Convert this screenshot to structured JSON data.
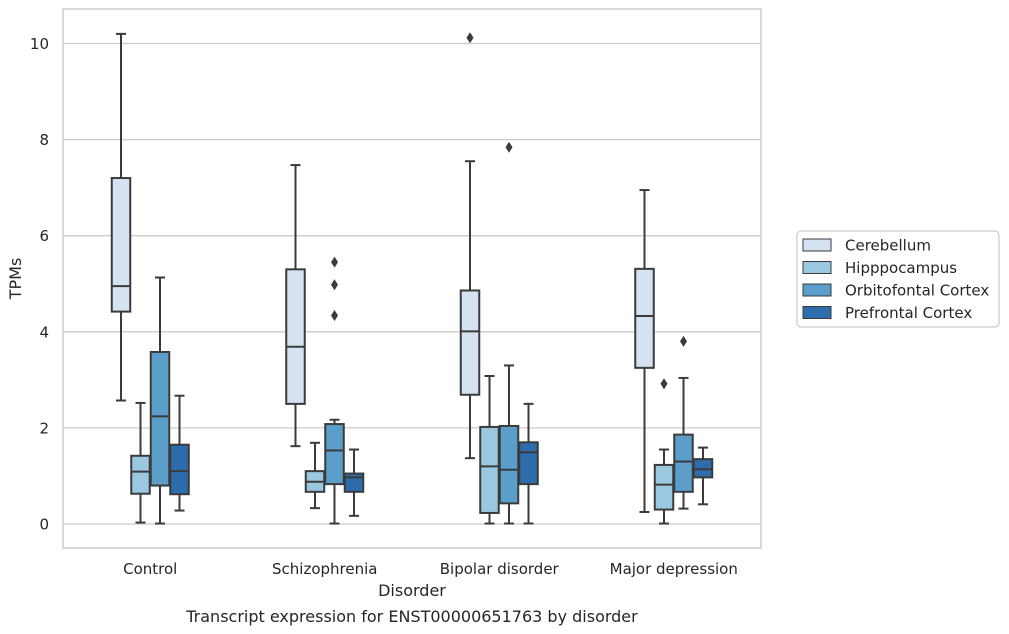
{
  "chart_data": {
    "type": "box",
    "title": "",
    "caption": "Transcript expression for ENST00000651763 by disorder",
    "xlabel": "Disorder",
    "ylabel": "TPMs",
    "ylim": [
      -0.5,
      10.7
    ],
    "yticks": [
      0,
      2,
      4,
      6,
      8,
      10
    ],
    "grid": "horizontal",
    "legend_position": "right",
    "categories": [
      "Control",
      "Schizophrenia",
      "Bipolar disorder",
      "Major depression"
    ],
    "series": [
      {
        "name": "Cerebellum",
        "color": "#d4e2f1",
        "boxes": [
          {
            "whisker_low": 2.57,
            "q1": 4.42,
            "median": 4.95,
            "q3": 7.2,
            "whisker_high": 10.2,
            "outliers": []
          },
          {
            "whisker_low": 1.62,
            "q1": 2.5,
            "median": 3.69,
            "q3": 5.3,
            "whisker_high": 7.47,
            "outliers": []
          },
          {
            "whisker_low": 1.37,
            "q1": 2.69,
            "median": 4.01,
            "q3": 4.86,
            "whisker_high": 7.55,
            "outliers": [
              10.12
            ]
          },
          {
            "whisker_low": 0.25,
            "q1": 3.25,
            "median": 4.33,
            "q3": 5.31,
            "whisker_high": 6.95,
            "outliers": []
          }
        ]
      },
      {
        "name": "Hipppocampus",
        "color": "#9ac8e0",
        "boxes": [
          {
            "whisker_low": 0.03,
            "q1": 0.63,
            "median": 1.09,
            "q3": 1.42,
            "whisker_high": 2.52,
            "outliers": []
          },
          {
            "whisker_low": 0.33,
            "q1": 0.67,
            "median": 0.88,
            "q3": 1.1,
            "whisker_high": 1.69,
            "outliers": []
          },
          {
            "whisker_low": 0.01,
            "q1": 0.23,
            "median": 1.2,
            "q3": 2.02,
            "whisker_high": 3.08,
            "outliers": []
          },
          {
            "whisker_low": 0.01,
            "q1": 0.3,
            "median": 0.82,
            "q3": 1.23,
            "whisker_high": 1.55,
            "outliers": [
              2.92
            ]
          }
        ]
      },
      {
        "name": "Orbitofontal Cortex",
        "color": "#5a9ec9",
        "boxes": [
          {
            "whisker_low": 0.01,
            "q1": 0.8,
            "median": 2.24,
            "q3": 3.58,
            "whisker_high": 5.13,
            "outliers": []
          },
          {
            "whisker_low": 0.01,
            "q1": 0.83,
            "median": 1.53,
            "q3": 2.08,
            "whisker_high": 2.17,
            "outliers": [
              4.34,
              4.98,
              5.45
            ]
          },
          {
            "whisker_low": 0.01,
            "q1": 0.43,
            "median": 1.13,
            "q3": 2.04,
            "whisker_high": 3.3,
            "outliers": [
              7.84
            ]
          },
          {
            "whisker_low": 0.32,
            "q1": 0.67,
            "median": 1.3,
            "q3": 1.86,
            "whisker_high": 3.04,
            "outliers": [
              3.8
            ]
          }
        ]
      },
      {
        "name": "Prefrontal Cortex",
        "color": "#2e6dab",
        "boxes": [
          {
            "whisker_low": 0.28,
            "q1": 0.62,
            "median": 1.1,
            "q3": 1.65,
            "whisker_high": 2.67,
            "outliers": []
          },
          {
            "whisker_low": 0.17,
            "q1": 0.67,
            "median": 0.97,
            "q3": 1.05,
            "whisker_high": 1.55,
            "outliers": []
          },
          {
            "whisker_low": 0.01,
            "q1": 0.83,
            "median": 1.49,
            "q3": 1.7,
            "whisker_high": 2.5,
            "outliers": []
          },
          {
            "whisker_low": 0.41,
            "q1": 0.97,
            "median": 1.14,
            "q3": 1.35,
            "whisker_high": 1.59,
            "outliers": []
          }
        ]
      }
    ]
  }
}
